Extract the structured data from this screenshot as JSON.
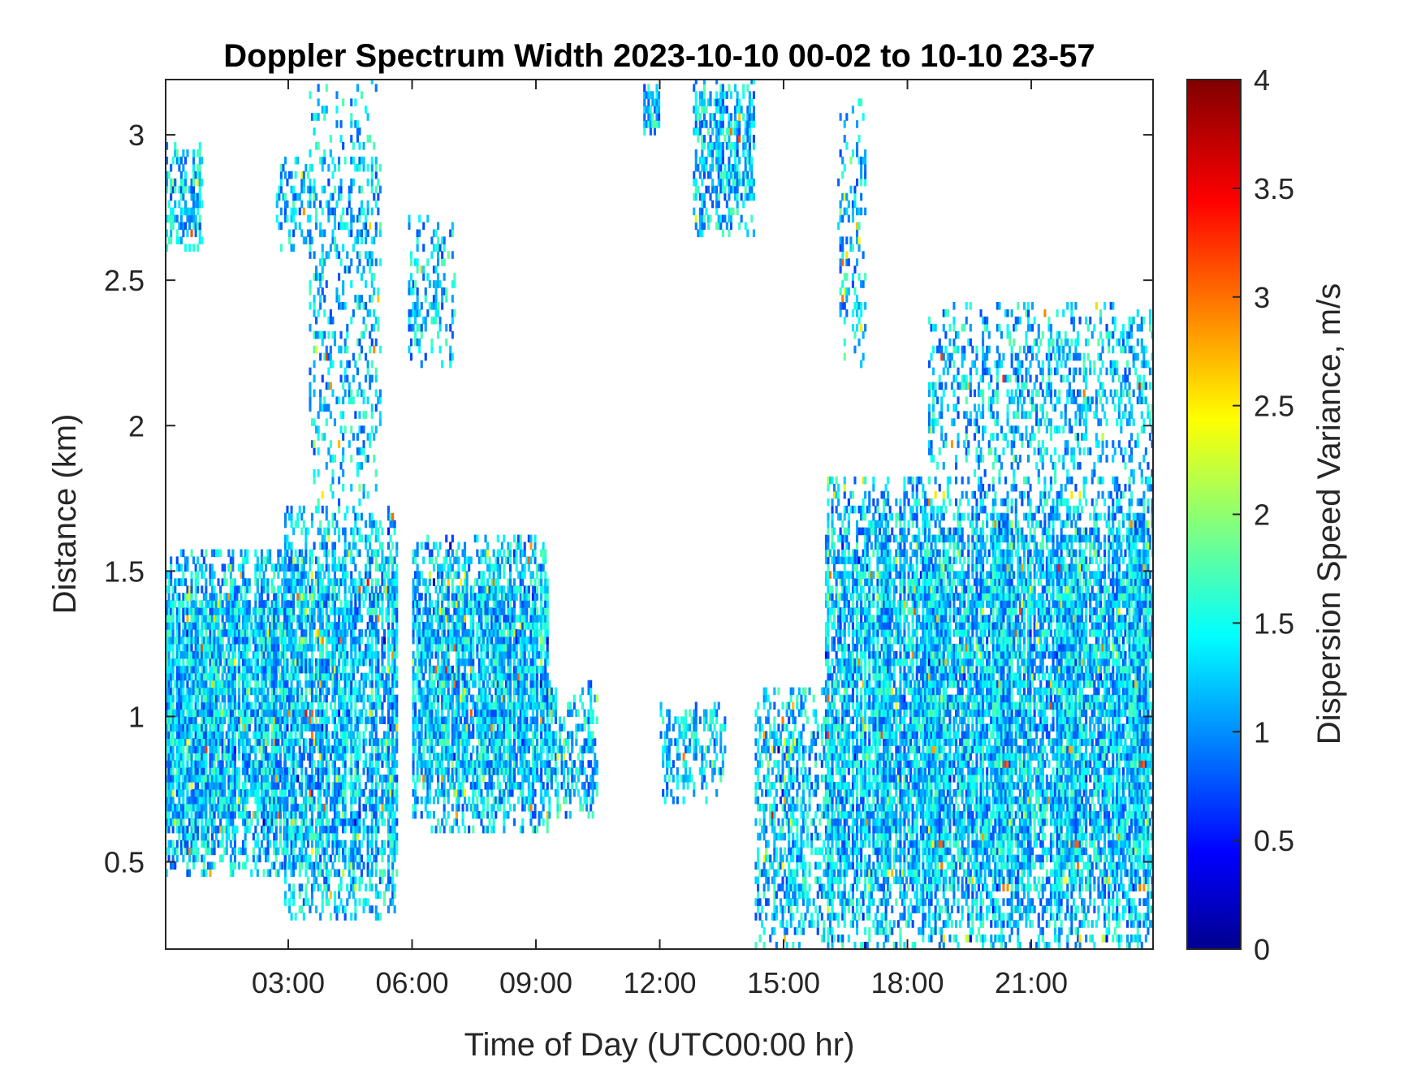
{
  "chart_data": {
    "type": "heatmap",
    "title": "Doppler Spectrum Width 2023-10-10 00-02 to 10-10 23-57",
    "xlabel": "Time of Day (UTC00:00 hr)",
    "ylabel": "Distance (km)",
    "colorbar_label": "Dispersion Speed Variance, m/s",
    "colormap": "jet",
    "xlim": [
      0.03,
      23.95
    ],
    "ylim": [
      0.2,
      3.19
    ],
    "clim": [
      0,
      4
    ],
    "x_ticks": [
      3,
      6,
      9,
      12,
      15,
      18,
      21
    ],
    "x_tick_labels": [
      "03:00",
      "06:00",
      "09:00",
      "12:00",
      "15:00",
      "18:00",
      "21:00"
    ],
    "y_ticks": [
      0.5,
      1,
      1.5,
      2,
      2.5,
      3
    ],
    "y_tick_labels": [
      "0.5",
      "1",
      "1.5",
      "2",
      "2.5",
      "3"
    ],
    "colorbar_ticks": [
      0,
      0.5,
      1,
      1.5,
      2,
      2.5,
      3,
      3.5,
      4
    ],
    "colorbar_tick_labels": [
      "0",
      "0.5",
      "1",
      "1.5",
      "2",
      "2.5",
      "3",
      "3.5",
      "4"
    ],
    "typical_value": 1.3,
    "echo_regions": [
      {
        "t0": 0.03,
        "t1": 2.9,
        "h0": 0.45,
        "h1": 1.55,
        "density": 0.85
      },
      {
        "t0": 2.9,
        "t1": 5.6,
        "h0": 0.3,
        "h1": 1.7,
        "density": 0.75
      },
      {
        "t0": 3.5,
        "t1": 5.2,
        "h0": 1.7,
        "h1": 3.19,
        "density": 0.25
      },
      {
        "t0": 6.0,
        "t1": 9.3,
        "h0": 0.6,
        "h1": 1.6,
        "density": 0.75
      },
      {
        "t0": 9.3,
        "t1": 10.5,
        "h0": 0.65,
        "h1": 1.1,
        "density": 0.5
      },
      {
        "t0": 0.03,
        "t1": 0.9,
        "h0": 2.6,
        "h1": 2.95,
        "density": 0.6
      },
      {
        "t0": 2.7,
        "t1": 3.5,
        "h0": 2.6,
        "h1": 2.9,
        "density": 0.4
      },
      {
        "t0": 5.9,
        "t1": 7.0,
        "h0": 2.2,
        "h1": 2.7,
        "density": 0.3
      },
      {
        "t0": 11.6,
        "t1": 12.0,
        "h0": 3.0,
        "h1": 3.15,
        "density": 0.7
      },
      {
        "t0": 12.8,
        "t1": 14.3,
        "h0": 2.65,
        "h1": 3.19,
        "density": 0.6
      },
      {
        "t0": 12.0,
        "t1": 13.6,
        "h0": 0.7,
        "h1": 1.05,
        "density": 0.4
      },
      {
        "t0": 14.3,
        "t1": 16.2,
        "h0": 0.2,
        "h1": 1.1,
        "density": 0.5
      },
      {
        "t0": 16.0,
        "t1": 23.95,
        "h0": 0.2,
        "h1": 1.8,
        "density": 0.85
      },
      {
        "t0": 18.5,
        "t1": 23.95,
        "h0": 1.8,
        "h1": 2.4,
        "density": 0.35
      },
      {
        "t0": 16.3,
        "t1": 17.0,
        "h0": 2.2,
        "h1": 3.1,
        "density": 0.25
      }
    ]
  }
}
